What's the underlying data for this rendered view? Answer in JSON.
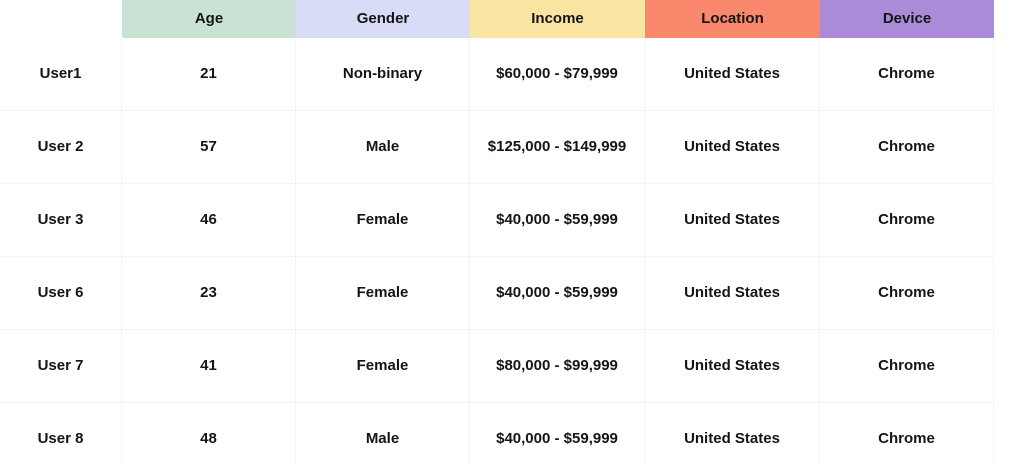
{
  "table": {
    "columns": [
      {
        "label": "Age",
        "color": "#c9e2d3"
      },
      {
        "label": "Gender",
        "color": "#d9dcf7"
      },
      {
        "label": "Income",
        "color": "#f9e5a1"
      },
      {
        "label": "Location",
        "color": "#f9886c"
      },
      {
        "label": "Device",
        "color": "#a98bd8"
      }
    ],
    "rows": [
      {
        "name": "User1",
        "age": "21",
        "gender": "Non-binary",
        "income": "$60,000 - $79,999",
        "location": "United States",
        "device": "Chrome"
      },
      {
        "name": "User 2",
        "age": "57",
        "gender": "Male",
        "income": "$125,000 - $149,999",
        "location": "United States",
        "device": "Chrome"
      },
      {
        "name": "User 3",
        "age": "46",
        "gender": "Female",
        "income": "$40,000 - $59,999",
        "location": "United States",
        "device": "Chrome"
      },
      {
        "name": "User 6",
        "age": "23",
        "gender": "Female",
        "income": "$40,000 - $59,999",
        "location": "United States",
        "device": "Chrome"
      },
      {
        "name": "User 7",
        "age": "41",
        "gender": "Female",
        "income": "$80,000 - $99,999",
        "location": "United States",
        "device": "Chrome"
      },
      {
        "name": "User 8",
        "age": "48",
        "gender": "Male",
        "income": "$40,000 - $59,999",
        "location": "United States",
        "device": "Chrome"
      }
    ]
  }
}
